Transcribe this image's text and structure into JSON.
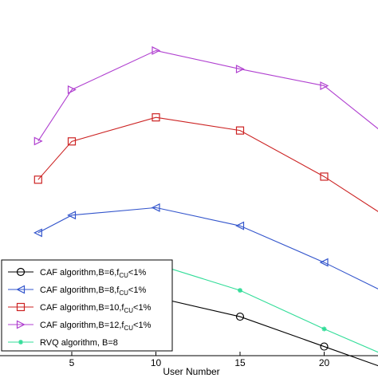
{
  "chart_data": {
    "type": "line",
    "xlabel": "User Number",
    "x_ticks": [
      5,
      10,
      15,
      20
    ],
    "x": [
      3,
      5,
      10,
      15,
      20,
      25
    ],
    "xlim": [
      2,
      23
    ],
    "ylim": [
      0,
      10
    ],
    "grid": false,
    "legend_position": "bottom-left",
    "series": [
      {
        "name": "CAF  algorithm,B=6,f",
        "sub": "CU",
        "suffix": "<1%",
        "color": "#000000",
        "marker": "circle",
        "values": [
          1.82,
          2.07,
          1.63,
          0.94,
          -0.13,
          -1.2
        ]
      },
      {
        "name": "CAF  algorithm,B=8,f",
        "sub": "CU",
        "suffix": "<1%",
        "color": "#3355cc",
        "marker": "triangle-left",
        "values": [
          3.94,
          4.57,
          4.84,
          4.19,
          2.88,
          1.4
        ]
      },
      {
        "name": "CAF  algorithm,B=10,f",
        "sub": "CU",
        "suffix": "<1%",
        "color": "#cc2222",
        "marker": "square",
        "values": [
          5.84,
          7.21,
          8.07,
          7.6,
          5.95,
          4.0
        ]
      },
      {
        "name": "CAF  algorithm,B=12,f",
        "sub": "CU",
        "suffix": "<1%",
        "color": "#b040d0",
        "marker": "triangle-right",
        "values": [
          7.22,
          9.06,
          10.46,
          9.8,
          9.2,
          6.8
        ]
      },
      {
        "name": "RVQ algorithm, B=8",
        "sub": "",
        "suffix": "",
        "color": "#33dd99",
        "marker": "star",
        "values": [
          2.43,
          2.83,
          2.82,
          1.88,
          0.5,
          -0.8
        ]
      }
    ]
  }
}
